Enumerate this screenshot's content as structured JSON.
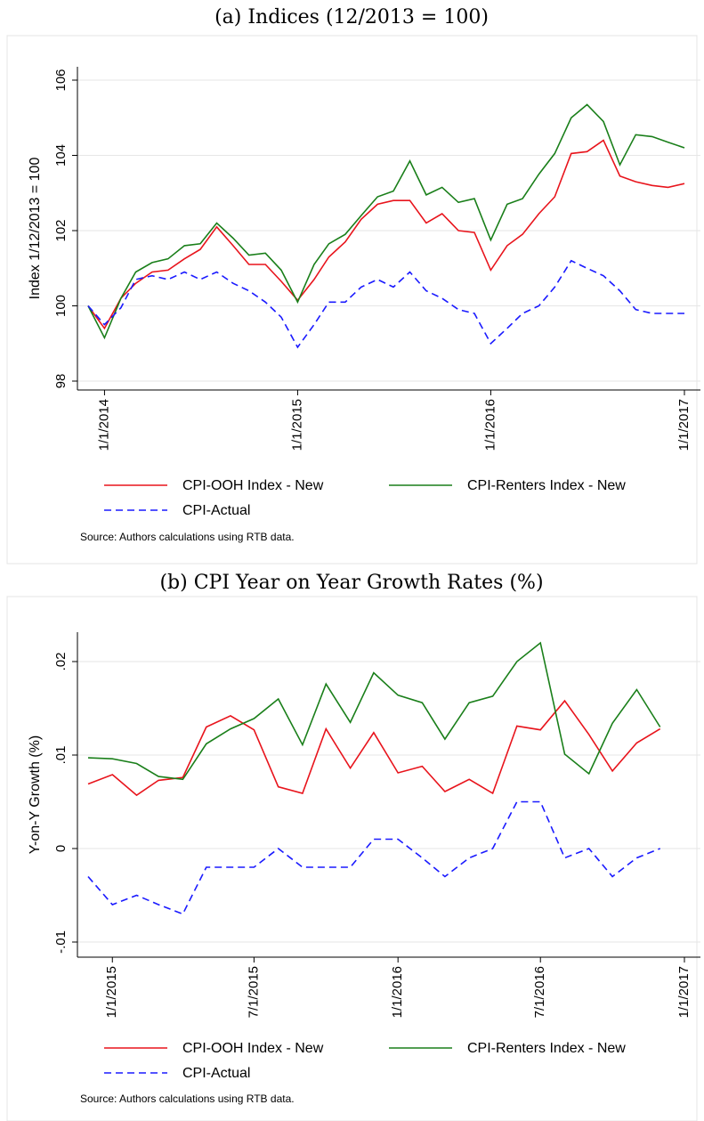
{
  "chart_data": [
    {
      "type": "line",
      "caption": "(a) Indices (12/2013 = 100)",
      "y_label": "Index 1/12/2013 = 100",
      "note": "Source: Authors calculations using RTB data.",
      "x": [
        "12/1/2013",
        "1/1/2014",
        "2/1/2014",
        "3/1/2014",
        "4/1/2014",
        "5/1/2014",
        "6/1/2014",
        "7/1/2014",
        "8/1/2014",
        "9/1/2014",
        "10/1/2014",
        "11/1/2014",
        "12/1/2014",
        "1/1/2015",
        "2/1/2015",
        "3/1/2015",
        "4/1/2015",
        "5/1/2015",
        "6/1/2015",
        "7/1/2015",
        "8/1/2015",
        "9/1/2015",
        "10/1/2015",
        "11/1/2015",
        "12/1/2015",
        "1/1/2016",
        "2/1/2016",
        "3/1/2016",
        "4/1/2016",
        "5/1/2016",
        "6/1/2016",
        "7/1/2016",
        "8/1/2016",
        "9/1/2016",
        "10/1/2016",
        "11/1/2016",
        "12/1/2016",
        "1/1/2017"
      ],
      "series": [
        {
          "name": "CPI-OOH Index - New",
          "color": "#e8141c",
          "line_style": "solid",
          "values": [
            100,
            99.4,
            100.2,
            100.6,
            100.9,
            100.95,
            101.25,
            101.5,
            102.1,
            101.6,
            101.1,
            101.1,
            100.65,
            100.15,
            100.7,
            101.3,
            101.7,
            102.3,
            102.7,
            102.8,
            102.8,
            102.2,
            102.45,
            102.0,
            101.95,
            100.95,
            101.6,
            101.9,
            102.45,
            102.9,
            104.05,
            104.1,
            104.4,
            103.45,
            103.3,
            103.2,
            103.15,
            103.25
          ]
        },
        {
          "name": "CPI-Renters Index - New",
          "color": "#1a7f1a",
          "line_style": "solid",
          "values": [
            100,
            99.15,
            100.2,
            100.9,
            101.15,
            101.25,
            101.6,
            101.65,
            102.2,
            101.8,
            101.35,
            101.4,
            100.95,
            100.1,
            101.1,
            101.65,
            101.9,
            102.4,
            102.9,
            103.05,
            103.85,
            102.95,
            103.15,
            102.75,
            102.85,
            101.75,
            102.7,
            102.85,
            103.5,
            104.05,
            105.0,
            105.35,
            104.9,
            103.75,
            104.55,
            104.5,
            104.35,
            104.2
          ]
        },
        {
          "name": "CPI-Actual",
          "color": "#1a1aff",
          "line_style": "dashed",
          "values": [
            100,
            99.5,
            99.95,
            100.7,
            100.8,
            100.7,
            100.9,
            100.7,
            100.9,
            100.6,
            100.4,
            100.1,
            99.7,
            98.9,
            99.5,
            100.1,
            100.1,
            100.5,
            100.7,
            100.5,
            100.9,
            100.4,
            100.2,
            99.9,
            99.8,
            99.0,
            99.4,
            99.8,
            100.0,
            100.5,
            101.2,
            101.0,
            100.8,
            100.4,
            99.9,
            99.8,
            99.8,
            99.8
          ]
        }
      ],
      "xlim": [
        "12/1/2013",
        "1/1/2017"
      ],
      "xticks": [
        "1/1/2014",
        "1/1/2015",
        "1/1/2016",
        "1/1/2017"
      ],
      "ylim": [
        98,
        106
      ],
      "yticks": [
        98,
        100,
        102,
        104,
        106
      ],
      "grid": true
    },
    {
      "type": "line",
      "caption": "(b) CPI Year on Year Growth Rates (%)",
      "y_label": "Y-on-Y Growth (%)",
      "note": "Source: Authors calculations using RTB data.",
      "x": [
        "12/1/2014",
        "1/1/2015",
        "2/1/2015",
        "3/1/2015",
        "4/1/2015",
        "5/1/2015",
        "6/1/2015",
        "7/1/2015",
        "8/1/2015",
        "9/1/2015",
        "10/1/2015",
        "11/1/2015",
        "12/1/2015",
        "1/1/2016",
        "2/1/2016",
        "3/1/2016",
        "4/1/2016",
        "5/1/2016",
        "6/1/2016",
        "7/1/2016",
        "8/1/2016",
        "9/1/2016",
        "10/1/2016",
        "11/1/2016",
        "12/1/2016"
      ],
      "series": [
        {
          "name": "CPI-OOH Index - New",
          "color": "#e8141c",
          "line_style": "solid",
          "values": [
            0.0069,
            0.0079,
            0.0057,
            0.0073,
            0.0076,
            0.013,
            0.0142,
            0.0127,
            0.0066,
            0.0059,
            0.0128,
            0.0086,
            0.0124,
            0.0081,
            0.0088,
            0.0061,
            0.0074,
            0.0059,
            0.0131,
            0.0127,
            0.0158,
            0.0122,
            0.0083,
            0.0113,
            0.0128
          ]
        },
        {
          "name": "CPI-Renters Index - New",
          "color": "#1a7f1a",
          "line_style": "solid",
          "values": [
            0.0097,
            0.0096,
            0.0091,
            0.0077,
            0.0074,
            0.0112,
            0.0128,
            0.0139,
            0.016,
            0.0111,
            0.0176,
            0.0135,
            0.0188,
            0.0164,
            0.0156,
            0.0117,
            0.0156,
            0.0163,
            0.02,
            0.022,
            0.0101,
            0.008,
            0.0134,
            0.017,
            0.013
          ]
        },
        {
          "name": "CPI-Actual",
          "color": "#1a1aff",
          "line_style": "dashed",
          "values": [
            -0.003,
            -0.006,
            -0.005,
            -0.006,
            -0.007,
            -0.002,
            -0.002,
            -0.002,
            0,
            -0.002,
            -0.002,
            -0.002,
            0.001,
            0.001,
            -0.001,
            -0.003,
            -0.001,
            0,
            0.005,
            0.005,
            -0.001,
            0,
            -0.003,
            -0.001,
            0
          ]
        }
      ],
      "xlim": [
        "12/1/2014",
        "1/1/2017"
      ],
      "xticks": [
        "1/1/2015",
        "7/1/2015",
        "1/1/2016",
        "7/1/2016",
        "1/1/2017"
      ],
      "ylim": [
        -0.01,
        0.02
      ],
      "yticks": [
        {
          "value": -0.01,
          "label": "-.01"
        },
        0,
        {
          "value": 0.01,
          "label": ".01"
        },
        {
          "value": 0.02,
          "label": ".02"
        }
      ],
      "grid": true
    }
  ]
}
